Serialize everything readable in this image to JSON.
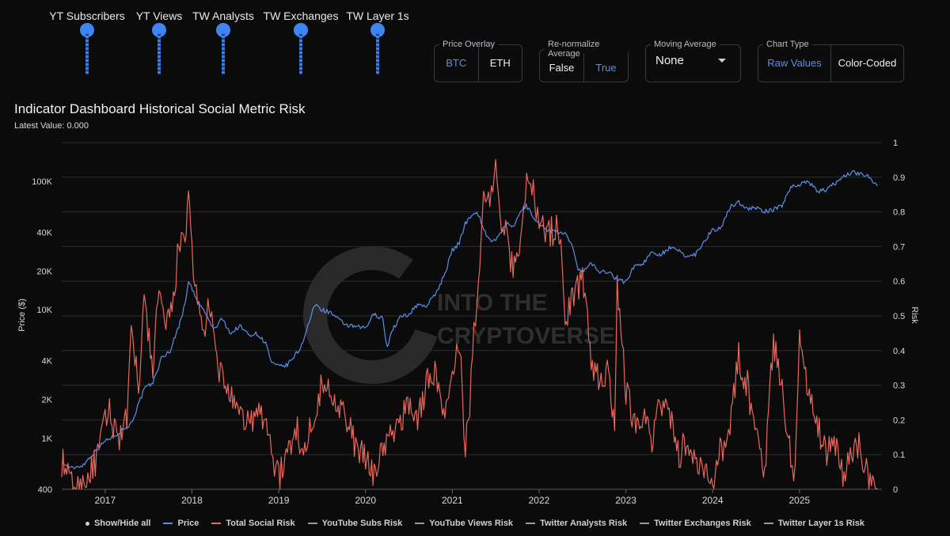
{
  "sliders": [
    {
      "label": "YT Subscribers"
    },
    {
      "label": "YT Views"
    },
    {
      "label": "TW Analysts"
    },
    {
      "label": "TW Exchanges"
    },
    {
      "label": "TW Layer 1s"
    }
  ],
  "controls": {
    "price_overlay": {
      "legend": "Price Overlay",
      "options": [
        "BTC",
        "ETH"
      ],
      "selected": "BTC"
    },
    "renormalize": {
      "legend": "Re-normalize Average",
      "options": [
        "False",
        "True"
      ],
      "selected": "True"
    },
    "moving_average": {
      "legend": "Moving Average",
      "value": "None"
    },
    "chart_type": {
      "legend": "Chart Type",
      "options": [
        "Raw Values",
        "Color-Coded"
      ],
      "selected": "Raw Values"
    }
  },
  "watermark": {
    "line1": "INTO THE",
    "line2": "CRYPTOVERSE"
  },
  "legend": {
    "show_hide": "Show/Hide all",
    "items": [
      {
        "name": "Price",
        "color": "#5b8fe8"
      },
      {
        "name": "Total Social Risk",
        "color": "#e8685c"
      },
      {
        "name": "YouTube Subs Risk",
        "color": "#9a9a9a"
      },
      {
        "name": "YouTube Views Risk",
        "color": "#9a9a9a"
      },
      {
        "name": "Twitter Analysts Risk",
        "color": "#9a9a9a"
      },
      {
        "name": "Twitter Exchanges Risk",
        "color": "#9a9a9a"
      },
      {
        "name": "Twitter Layer 1s Risk",
        "color": "#9a9a9a"
      }
    ]
  },
  "chart_data": {
    "type": "line",
    "title": "Indicator Dashboard Historical Social Metric Risk",
    "subtitle": "Latest Value: 0.000",
    "xlabel": "",
    "ylabel_left": "Price ($)",
    "ylabel_right": "Risk",
    "x_ticks": [
      "2017",
      "2018",
      "2019",
      "2020",
      "2021",
      "2022",
      "2023",
      "2024",
      "2025"
    ],
    "x_range": [
      2016.5,
      2025.95
    ],
    "y_left_scale": "log",
    "y_left_range": [
      400,
      200000
    ],
    "y_left_ticks": [
      {
        "value": 400,
        "label": "400"
      },
      {
        "value": 1000,
        "label": "1K"
      },
      {
        "value": 2000,
        "label": "2K"
      },
      {
        "value": 4000,
        "label": "4K"
      },
      {
        "value": 10000,
        "label": "10K"
      },
      {
        "value": 20000,
        "label": "20K"
      },
      {
        "value": 40000,
        "label": "40K"
      },
      {
        "value": 100000,
        "label": "100K"
      }
    ],
    "y_right_range": [
      0,
      1
    ],
    "y_right_ticks": [
      "0",
      "0.1",
      "0.2",
      "0.3",
      "0.4",
      "0.5",
      "0.6",
      "0.7",
      "0.8",
      "0.9",
      "1"
    ],
    "series": [
      {
        "name": "Price",
        "axis": "left",
        "color": "#5b8fe8",
        "x": [
          2016.5,
          2016.6,
          2016.75,
          2016.85,
          2017.0,
          2017.15,
          2017.3,
          2017.45,
          2017.55,
          2017.65,
          2017.75,
          2017.85,
          2017.92,
          2017.96,
          2018.05,
          2018.15,
          2018.25,
          2018.35,
          2018.45,
          2018.55,
          2018.65,
          2018.75,
          2018.85,
          2018.92,
          2019.0,
          2019.1,
          2019.25,
          2019.35,
          2019.42,
          2019.5,
          2019.6,
          2019.7,
          2019.8,
          2019.9,
          2020.0,
          2020.1,
          2020.2,
          2020.25,
          2020.3,
          2020.4,
          2020.5,
          2020.6,
          2020.7,
          2020.8,
          2020.9,
          2021.0,
          2021.08,
          2021.15,
          2021.25,
          2021.3,
          2021.35,
          2021.42,
          2021.5,
          2021.55,
          2021.62,
          2021.7,
          2021.78,
          2021.85,
          2021.9,
          2022.0,
          2022.1,
          2022.2,
          2022.3,
          2022.4,
          2022.45,
          2022.5,
          2022.6,
          2022.7,
          2022.8,
          2022.9,
          2023.0,
          2023.1,
          2023.2,
          2023.3,
          2023.4,
          2023.5,
          2023.6,
          2023.7,
          2023.8,
          2023.9,
          2024.0,
          2024.1,
          2024.2,
          2024.3,
          2024.4,
          2024.5,
          2024.6,
          2024.7,
          2024.8,
          2024.9,
          2025.0,
          2025.1,
          2025.2,
          2025.3,
          2025.4,
          2025.5,
          2025.6,
          2025.7,
          2025.8,
          2025.9
        ],
        "values": [
          650,
          580,
          620,
          750,
          950,
          1100,
          1300,
          2400,
          2700,
          4200,
          4800,
          7500,
          11000,
          17000,
          12000,
          9500,
          7000,
          8500,
          6500,
          7500,
          6400,
          6500,
          5500,
          3800,
          3600,
          3700,
          5000,
          8000,
          11000,
          10000,
          9500,
          8200,
          7500,
          7300,
          7200,
          9300,
          8500,
          5000,
          6800,
          8700,
          9200,
          11000,
          10700,
          13000,
          18000,
          29000,
          33000,
          47000,
          58000,
          55000,
          45000,
          35000,
          34000,
          39000,
          47000,
          43000,
          57000,
          65000,
          57000,
          46000,
          42000,
          40000,
          39000,
          29000,
          21000,
          20000,
          23000,
          19500,
          20000,
          17000,
          16500,
          22000,
          23000,
          28000,
          27000,
          30000,
          29000,
          26000,
          27000,
          34000,
          42000,
          43000,
          63000,
          69000,
          61000,
          62000,
          58000,
          60000,
          65000,
          90000,
          95000,
          100000,
          84000,
          85000,
          95000,
          108000,
          118000,
          114000,
          110000,
          92000
        ]
      },
      {
        "name": "Total Social Risk",
        "axis": "right",
        "color": "#e8685c",
        "x": [
          2016.5,
          2016.6,
          2016.7,
          2016.8,
          2016.9,
          2017.0,
          2017.05,
          2017.15,
          2017.25,
          2017.3,
          2017.4,
          2017.45,
          2017.55,
          2017.62,
          2017.7,
          2017.8,
          2017.85,
          2017.92,
          2017.96,
          2018.0,
          2018.05,
          2018.12,
          2018.2,
          2018.3,
          2018.4,
          2018.5,
          2018.6,
          2018.7,
          2018.8,
          2018.9,
          2018.95,
          2019.0,
          2019.1,
          2019.2,
          2019.3,
          2019.4,
          2019.5,
          2019.6,
          2019.7,
          2019.8,
          2019.9,
          2020.0,
          2020.1,
          2020.2,
          2020.3,
          2020.4,
          2020.5,
          2020.6,
          2020.7,
          2020.8,
          2020.9,
          2021.0,
          2021.05,
          2021.1,
          2021.15,
          2021.2,
          2021.25,
          2021.3,
          2021.35,
          2021.37,
          2021.4,
          2021.45,
          2021.5,
          2021.55,
          2021.6,
          2021.7,
          2021.8,
          2021.87,
          2021.95,
          2022.0,
          2022.1,
          2022.2,
          2022.25,
          2022.3,
          2022.4,
          2022.5,
          2022.6,
          2022.7,
          2022.8,
          2022.87,
          2022.9,
          2023.0,
          2023.1,
          2023.2,
          2023.3,
          2023.4,
          2023.5,
          2023.6,
          2023.7,
          2023.8,
          2023.9,
          2024.0,
          2024.1,
          2024.15,
          2024.2,
          2024.3,
          2024.4,
          2024.5,
          2024.6,
          2024.7,
          2024.8,
          2024.9,
          2024.95,
          2025.0,
          2025.1,
          2025.2,
          2025.3,
          2025.4,
          2025.5,
          2025.6,
          2025.7,
          2025.8,
          2025.9
        ],
        "values": [
          0.08,
          0.02,
          0.0,
          0.04,
          0.08,
          0.2,
          0.22,
          0.15,
          0.2,
          0.43,
          0.3,
          0.55,
          0.35,
          0.58,
          0.45,
          0.55,
          0.74,
          0.68,
          0.86,
          0.7,
          0.55,
          0.45,
          0.52,
          0.35,
          0.3,
          0.22,
          0.2,
          0.2,
          0.22,
          0.15,
          0.08,
          0.03,
          0.1,
          0.18,
          0.1,
          0.22,
          0.3,
          0.28,
          0.25,
          0.18,
          0.12,
          0.08,
          0.05,
          0.12,
          0.15,
          0.2,
          0.25,
          0.2,
          0.3,
          0.35,
          0.2,
          0.3,
          0.45,
          0.35,
          0.1,
          0.25,
          0.45,
          0.62,
          0.8,
          0.85,
          0.82,
          0.84,
          0.98,
          0.8,
          0.75,
          0.63,
          0.75,
          0.92,
          0.84,
          0.78,
          0.74,
          0.75,
          0.72,
          0.5,
          0.55,
          0.62,
          0.38,
          0.3,
          0.36,
          0.18,
          0.6,
          0.28,
          0.2,
          0.22,
          0.15,
          0.25,
          0.22,
          0.1,
          0.13,
          0.08,
          0.04,
          0.02,
          0.15,
          0.08,
          0.2,
          0.38,
          0.3,
          0.15,
          0.06,
          0.43,
          0.28,
          0.1,
          0.05,
          0.42,
          0.3,
          0.2,
          0.1,
          0.15,
          0.05,
          0.1,
          0.13,
          0.02,
          0.0
        ]
      }
    ]
  }
}
